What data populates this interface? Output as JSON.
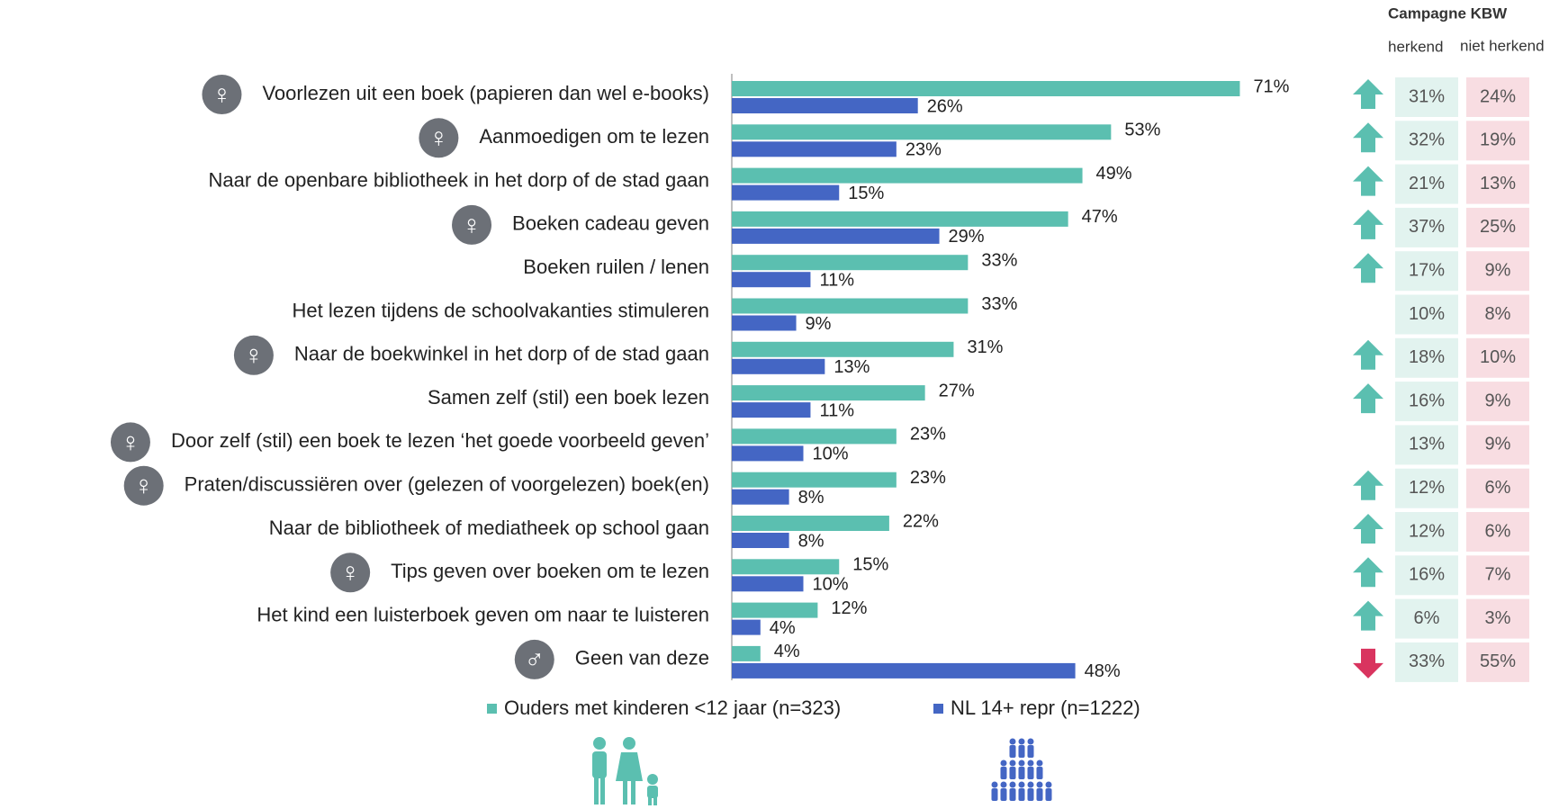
{
  "chart_data": {
    "type": "bar",
    "orientation": "horizontal",
    "categories": [
      "Voorlezen uit een boek (papieren dan wel e-books)",
      "Aanmoedigen om te lezen",
      "Naar de openbare bibliotheek in het dorp of de stad gaan",
      "Boeken cadeau geven",
      "Boeken ruilen / lenen",
      "Het lezen tijdens de schoolvakanties stimuleren",
      "Naar de boekwinkel in het dorp of de stad gaan",
      "Samen zelf (stil) een boek lezen",
      "Door zelf (stil) een boek te lezen ‘het goede voorbeeld geven’",
      "Praten/discussiëren over (gelezen of voorgelezen) boek(en)",
      "Naar de bibliotheek of mediatheek op school gaan",
      "Tips geven over boeken om te lezen",
      "Het kind een luisterboek geven om naar te luisteren",
      "Geen van deze"
    ],
    "icons": [
      "♀",
      "♀",
      null,
      "♀",
      null,
      null,
      "♀",
      null,
      "♀",
      "♀",
      null,
      "♀",
      null,
      "♂"
    ],
    "series": [
      {
        "name": "Ouders met kinderen <12 jaar (n=323)",
        "color": "#5bbfb0",
        "values": [
          71,
          53,
          49,
          47,
          33,
          33,
          31,
          27,
          23,
          23,
          22,
          15,
          12,
          4
        ],
        "value_labels": [
          "71%",
          "53%",
          "49%",
          "47%",
          "33%",
          "33%",
          "31%",
          "27%",
          "23%",
          "23%",
          "22%",
          "15%",
          "12%",
          "4%"
        ]
      },
      {
        "name": "NL 14+ repr (n=1222)",
        "color": "#4466c4",
        "values": [
          26,
          23,
          15,
          29,
          11,
          9,
          13,
          11,
          10,
          8,
          8,
          10,
          4,
          48
        ],
        "value_labels": [
          "26%",
          "23%",
          "15%",
          "29%",
          "11%",
          "9%",
          "13%",
          "11%",
          "10%",
          "8%",
          "8%",
          "10%",
          "4%",
          "48%"
        ]
      }
    ],
    "xlim": [
      0,
      100
    ],
    "legend": "bottom"
  },
  "kbw_table": {
    "title": "Campagne KBW",
    "columns": [
      "herkend",
      "niet herkend"
    ],
    "rows": [
      [
        "31%",
        "24%"
      ],
      [
        "32%",
        "19%"
      ],
      [
        "21%",
        "13%"
      ],
      [
        "37%",
        "25%"
      ],
      [
        "17%",
        "9%"
      ],
      [
        "10%",
        "8%"
      ],
      [
        "18%",
        "10%"
      ],
      [
        "16%",
        "9%"
      ],
      [
        "13%",
        "9%"
      ],
      [
        "12%",
        "6%"
      ],
      [
        "12%",
        "6%"
      ],
      [
        "16%",
        "7%"
      ],
      [
        "6%",
        "3%"
      ],
      [
        "33%",
        "55%"
      ]
    ],
    "trend": [
      "up",
      "up",
      "up",
      "up",
      "up",
      null,
      "up",
      "up",
      null,
      "up",
      "up",
      "up",
      "up",
      "down"
    ]
  }
}
